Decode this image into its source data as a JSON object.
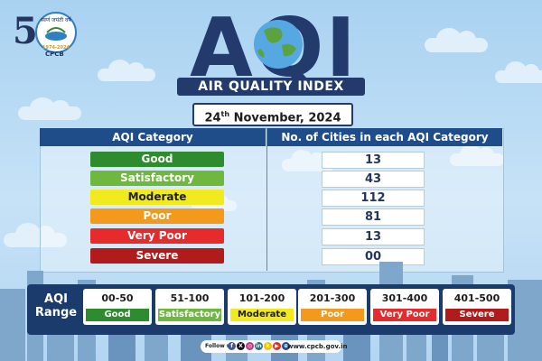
{
  "logo": {
    "number": "50",
    "hindi_tagline": "स्वर्ण जयंती वर्ष",
    "years": "1974-2024",
    "org": "CPCB"
  },
  "header": {
    "title": "AQI",
    "subtitle": "AIR QUALITY INDEX"
  },
  "date": {
    "day": "24",
    "suffix": "th",
    "rest": " November, 2024"
  },
  "table": {
    "col_category": "AQI Category",
    "col_count": "No. of Cities in each AQI Category",
    "rows": [
      {
        "category": "Good",
        "count": "13",
        "color": "#2e8b2e",
        "text_color": "#ffffff"
      },
      {
        "category": "Satisfactory",
        "count": "43",
        "color": "#6fb83f",
        "text_color": "#ffffff"
      },
      {
        "category": "Moderate",
        "count": "112",
        "color": "#f1ea1f",
        "text_color": "#1d1d1d"
      },
      {
        "category": "Poor",
        "count": "81",
        "color": "#f39a1c",
        "text_color": "#ffffff"
      },
      {
        "category": "Very Poor",
        "count": "13",
        "color": "#e52b2b",
        "text_color": "#ffffff"
      },
      {
        "category": "Severe",
        "count": "00",
        "color": "#b11b1b",
        "text_color": "#ffffff"
      }
    ]
  },
  "range": {
    "label_line1": "AQI",
    "label_line2": "Range",
    "items": [
      {
        "range": "00-50",
        "name": "Good",
        "color": "#2e8b2e"
      },
      {
        "range": "51-100",
        "name": "Satisfactory",
        "color": "#6fb83f"
      },
      {
        "range": "101-200",
        "name": "Moderate",
        "color": "#f1ea1f"
      },
      {
        "range": "201-300",
        "name": "Poor",
        "color": "#f39a1c"
      },
      {
        "range": "301-400",
        "name": "Very Poor",
        "color": "#e52b2b"
      },
      {
        "range": "401-500",
        "name": "Severe",
        "color": "#b11b1b"
      }
    ]
  },
  "footer": {
    "follow_label": "Follow us:",
    "socials": [
      {
        "icon": "facebook-icon",
        "glyph": "f",
        "color": "#3b5998"
      },
      {
        "icon": "x-icon",
        "glyph": "X",
        "color": "#111111"
      },
      {
        "icon": "instagram-icon",
        "glyph": "◎",
        "color": "#c13584"
      },
      {
        "icon": "linkedin-icon",
        "glyph": "in",
        "color": "#0e76a8"
      },
      {
        "icon": "koo-icon",
        "glyph": "k",
        "color": "#f2c200"
      },
      {
        "icon": "youtube-icon",
        "glyph": "▶",
        "color": "#e52d27"
      },
      {
        "icon": "globe-icon",
        "glyph": "⊕",
        "color": "#1f4d89"
      }
    ],
    "website": "www.cpcb.gov.in"
  }
}
